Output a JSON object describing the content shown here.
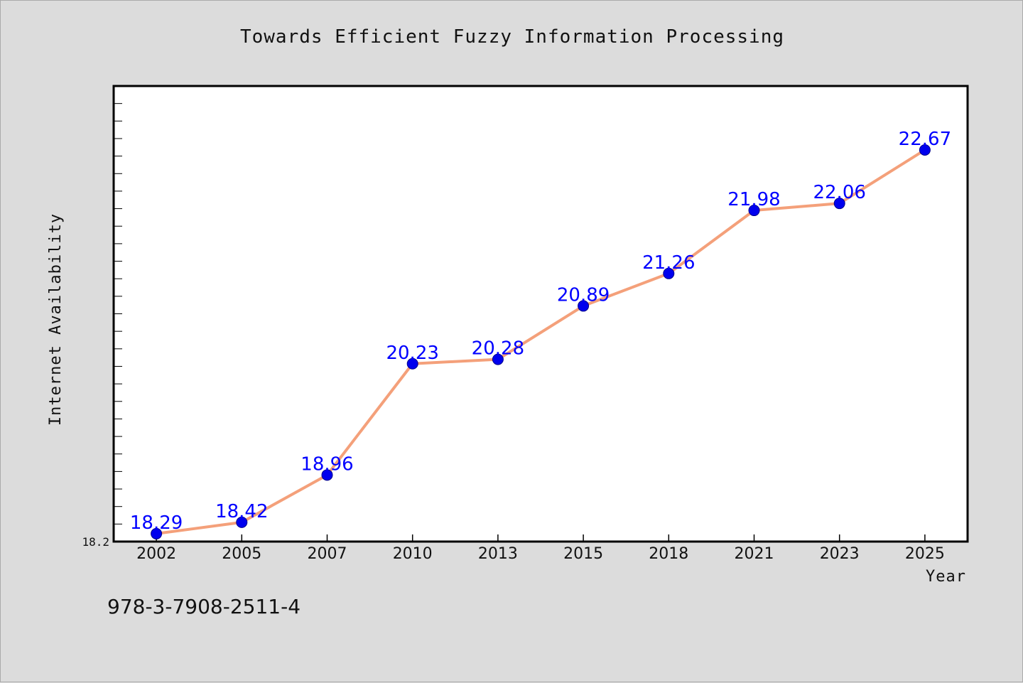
{
  "title": "Towards Efficient Fuzzy Information Processing",
  "footer": {
    "isbn": "978-3-7908-2511-4"
  },
  "colors": {
    "line": "#f4a07a",
    "marker": "#0000ee",
    "label": "#0000ff",
    "plot_bg": "#ffffff",
    "page_bg": "#dcdcdc"
  },
  "chart_data": {
    "type": "line",
    "title": "Towards Efficient Fuzzy Information Processing",
    "xlabel": "Year",
    "ylabel": "Internet Availability",
    "categories": [
      "2002",
      "2005",
      "2007",
      "2010",
      "2013",
      "2015",
      "2018",
      "2021",
      "2023",
      "2025"
    ],
    "series": [
      {
        "values": [
          18.29,
          18.42,
          18.96,
          20.23,
          20.28,
          20.89,
          21.26,
          21.98,
          22.06,
          22.67
        ]
      }
    ],
    "y_tick_labels": [
      "18.2"
    ],
    "ylim": [
      18.2,
      23.4
    ],
    "grid": false,
    "data_labels": true
  }
}
